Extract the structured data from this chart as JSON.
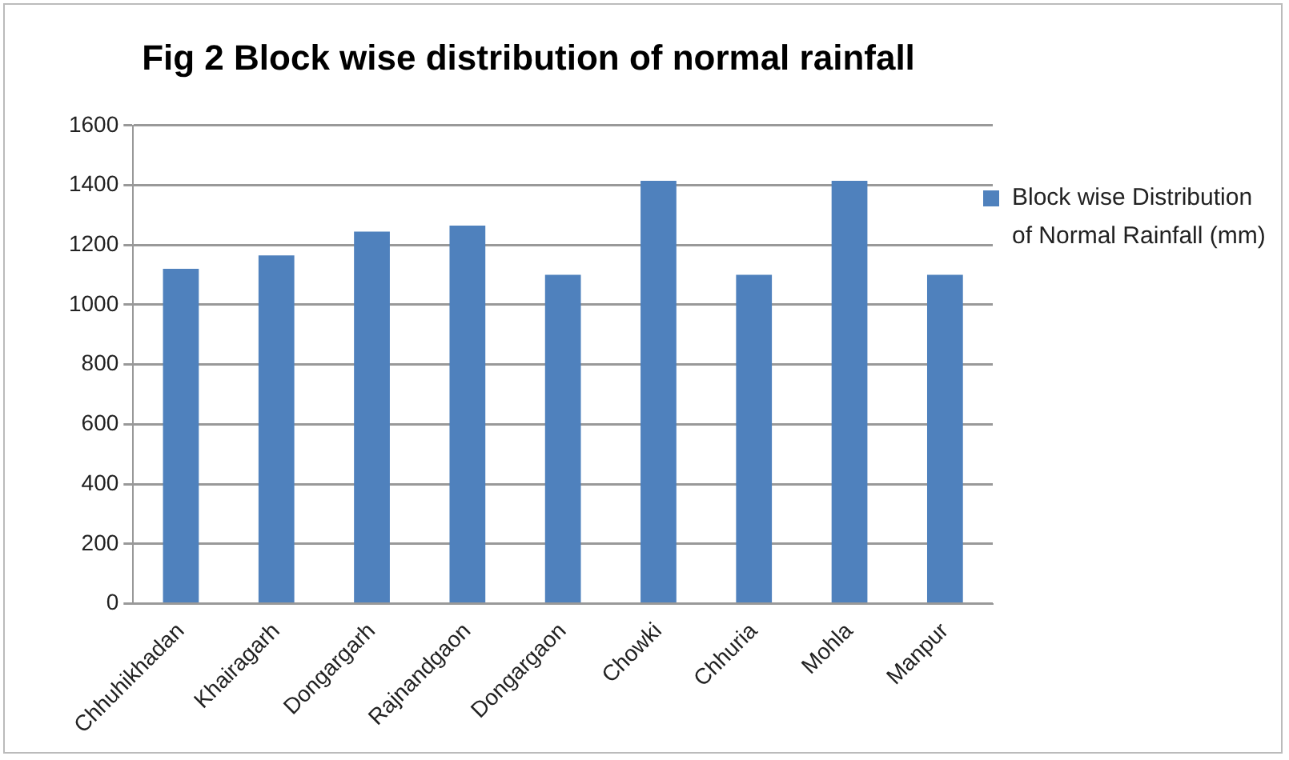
{
  "chart_data": {
    "type": "bar",
    "title": "Fig 2 Block wise distribution of normal rainfall",
    "categories": [
      "Chhuhikhadan",
      "Khairagarh",
      "Dongargarh",
      "Rajnandgaon",
      "Dongargaon",
      "Chowki",
      "Chhuria",
      "Mohla",
      "Manpur"
    ],
    "series": [
      {
        "name": "Block wise Distribution of Normal Rainfall (mm)",
        "color": "#4f81bd",
        "values": [
          1120,
          1165,
          1245,
          1265,
          1100,
          1415,
          1100,
          1415,
          1100
        ]
      }
    ],
    "ylim": [
      0,
      1600
    ],
    "yticks": [
      0,
      200,
      400,
      600,
      800,
      1000,
      1200,
      1400,
      1600
    ],
    "grid": "y",
    "legend": "right"
  }
}
